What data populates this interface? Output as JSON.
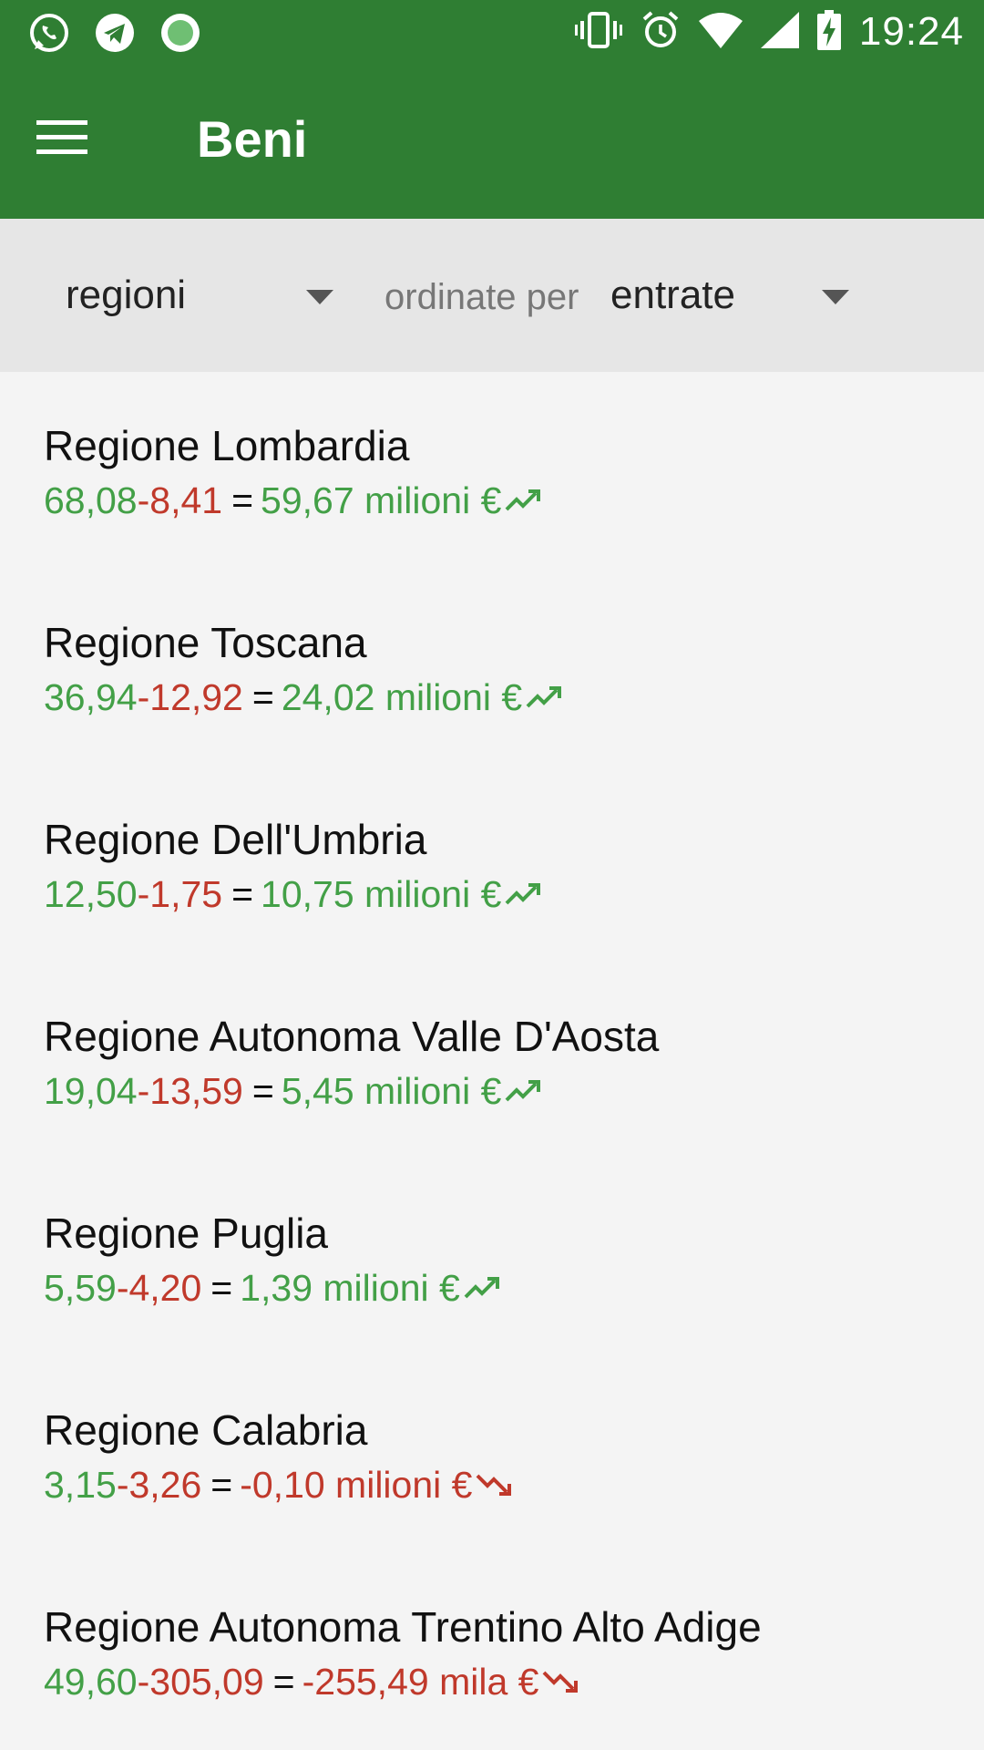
{
  "status_bar": {
    "time": "19:24",
    "left_icons": [
      "whatsapp-icon",
      "telegram-icon",
      "record-icon"
    ],
    "right_icons": [
      "vibrate-icon",
      "alarm-icon",
      "wifi-icon",
      "signal-icon",
      "battery-charging-icon"
    ]
  },
  "app_bar": {
    "title": "Beni",
    "menu_icon": "hamburger-menu-icon",
    "color": "#2f7e33"
  },
  "filters": {
    "group_by": "regioni",
    "order_label": "ordinate per",
    "order_by": "entrate"
  },
  "colors": {
    "positive": "#43a047",
    "negative": "#c0392b"
  },
  "items": [
    {
      "name": "Regione Lombardia",
      "income": "68,08",
      "expense": "-8,41",
      "equals": "=",
      "total": "59,67 milioni €",
      "trend": "up"
    },
    {
      "name": "Regione Toscana",
      "income": "36,94",
      "expense": "-12,92",
      "equals": "=",
      "total": "24,02 milioni €",
      "trend": "up"
    },
    {
      "name": "Regione Dell'Umbria",
      "income": "12,50",
      "expense": "-1,75",
      "equals": "=",
      "total": "10,75 milioni €",
      "trend": "up"
    },
    {
      "name": "Regione Autonoma Valle D'Aosta",
      "income": "19,04",
      "expense": "-13,59",
      "equals": "=",
      "total": "5,45 milioni €",
      "trend": "up"
    },
    {
      "name": "Regione Puglia",
      "income": "5,59",
      "expense": "-4,20",
      "equals": "=",
      "total": "1,39 milioni €",
      "trend": "up"
    },
    {
      "name": "Regione Calabria",
      "income": "3,15",
      "expense": "-3,26",
      "equals": "=",
      "total": "-0,10 milioni €",
      "trend": "down"
    },
    {
      "name": "Regione Autonoma Trentino Alto Adige",
      "income": "49,60",
      "expense": "-305,09",
      "equals": "=",
      "total": "-255,49 mila €",
      "trend": "down"
    }
  ]
}
